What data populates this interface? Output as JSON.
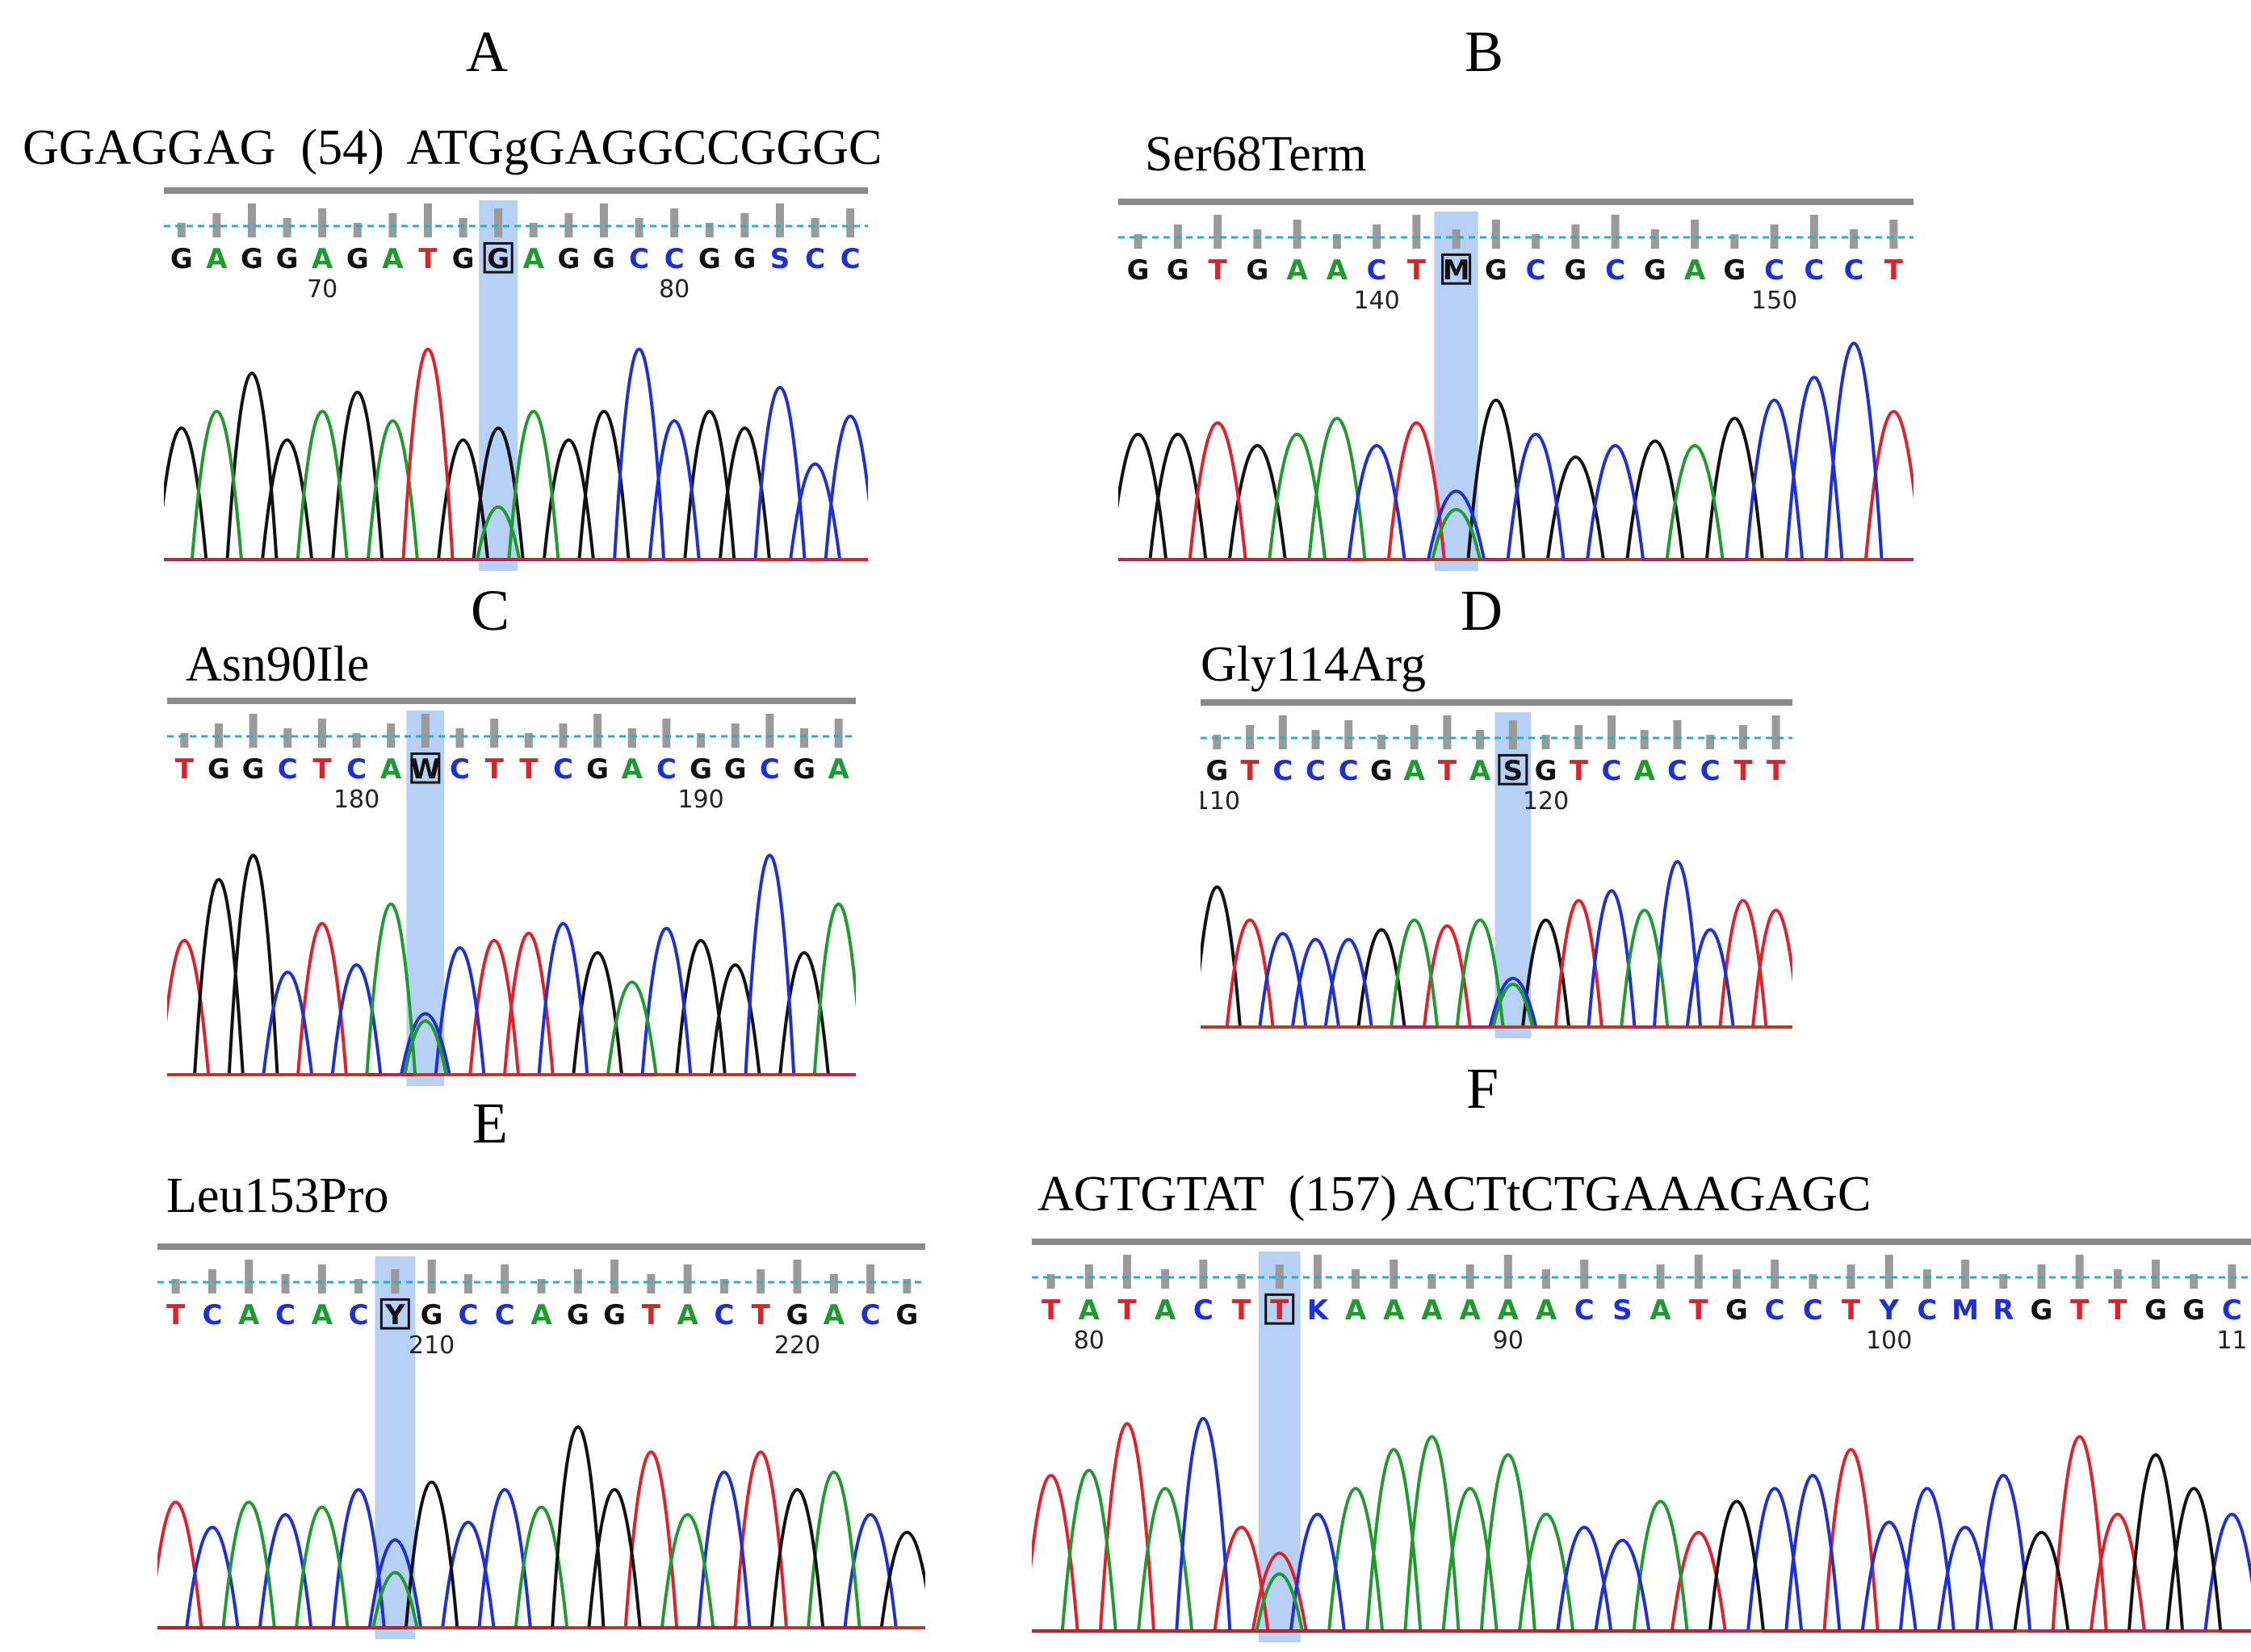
{
  "colors": {
    "A": "#1f9a2f",
    "C": "#1d2fd6",
    "G": "#111111",
    "T": "#e0202a",
    "other": "#1d2fd6",
    "highlight": "#a9c8f4",
    "quality": "#9a9a9a",
    "threshold": "#22b3c0"
  },
  "panels": [
    {
      "id": "A",
      "label": "A",
      "caption": "GGAGGAG  (54)  ATGgGAGGCCGGGC",
      "bases": "GAGGAGATGGAGGCCGGSCC",
      "mutation_index": 9,
      "positions": [
        {
          "value": "70",
          "index": 4
        },
        {
          "value": "80",
          "index": 14
        }
      ],
      "peaks": [
        0.55,
        0.62,
        0.78,
        0.5,
        0.62,
        0.7,
        0.58,
        0.88,
        0.5,
        0.55,
        0.62,
        0.5,
        0.62,
        0.88,
        0.58,
        0.62,
        0.55,
        0.72,
        0.4,
        0.6
      ]
    },
    {
      "id": "B",
      "label": "B",
      "caption": "Ser68Term",
      "bases": "GGTGAACTMGCGCGAGCCCT",
      "mutation_index": 8,
      "positions": [
        {
          "value": "140",
          "index": 6
        },
        {
          "value": "150",
          "index": 16
        }
      ],
      "peaks": [
        0.55,
        0.55,
        0.6,
        0.5,
        0.55,
        0.62,
        0.5,
        0.6,
        0.3,
        0.7,
        0.55,
        0.45,
        0.5,
        0.52,
        0.5,
        0.62,
        0.7,
        0.8,
        0.95,
        0.65
      ]
    },
    {
      "id": "C",
      "label": "C",
      "caption": "Asn90Ile",
      "bases": "TGGCTCAWCTTCGACGGCGA",
      "mutation_index": 7,
      "positions": [
        {
          "value": "180",
          "index": 5
        },
        {
          "value": "190",
          "index": 15
        }
      ],
      "peaks": [
        0.55,
        0.8,
        0.9,
        0.42,
        0.62,
        0.45,
        0.7,
        0.25,
        0.52,
        0.55,
        0.58,
        0.62,
        0.5,
        0.38,
        0.6,
        0.55,
        0.45,
        0.9,
        0.5,
        0.7
      ]
    },
    {
      "id": "D",
      "label": "D",
      "caption": "Gly114Arg",
      "bases": "GTCCCGATASGTCACCTT",
      "mutation_index": 9,
      "positions": [
        {
          "value": "110",
          "index": 0
        },
        {
          "value": "120",
          "index": 10
        }
      ],
      "peaks": [
        0.72,
        0.55,
        0.48,
        0.45,
        0.45,
        0.5,
        0.55,
        0.52,
        0.55,
        0.25,
        0.55,
        0.65,
        0.7,
        0.6,
        0.85,
        0.5,
        0.65,
        0.6
      ]
    },
    {
      "id": "E",
      "label": "E",
      "caption": "Leu153Pro",
      "bases": "TCACACYGCCAGGTACTGACG",
      "mutation_index": 6,
      "positions": [
        {
          "value": "210",
          "index": 7
        },
        {
          "value": "220",
          "index": 17
        }
      ],
      "peaks": [
        0.5,
        0.4,
        0.5,
        0.45,
        0.48,
        0.55,
        0.35,
        0.58,
        0.42,
        0.55,
        0.48,
        0.8,
        0.55,
        0.7,
        0.45,
        0.62,
        0.7,
        0.55,
        0.62,
        0.45,
        0.38
      ]
    },
    {
      "id": "F",
      "label": "F",
      "caption": "AGTGTAT  (157) ACTtCTGAAAGAGC",
      "bases": "TATACTTKAAAAAACSATGCCTYCMRGTTGGC",
      "mutation_index": 6,
      "positions": [
        {
          "value": "80",
          "index": 1
        },
        {
          "value": "90",
          "index": 12
        },
        {
          "value": "100",
          "index": 22
        },
        {
          "value": "11",
          "index": 31
        }
      ],
      "peaks": [
        0.6,
        0.62,
        0.8,
        0.55,
        0.82,
        0.4,
        0.3,
        0.45,
        0.55,
        0.7,
        0.75,
        0.55,
        0.68,
        0.45,
        0.4,
        0.35,
        0.5,
        0.38,
        0.5,
        0.55,
        0.6,
        0.7,
        0.42,
        0.55,
        0.4,
        0.6,
        0.38,
        0.75,
        0.45,
        0.68,
        0.55,
        0.45
      ]
    }
  ]
}
